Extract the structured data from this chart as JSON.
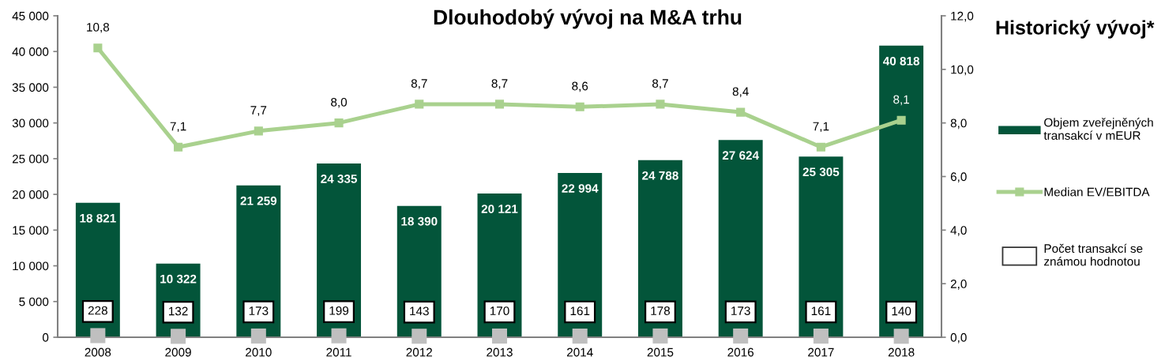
{
  "chart_data": {
    "type": "bar",
    "title": "Dlouhodobý vývoj na M&A trhu",
    "categories": [
      "2008",
      "2009",
      "2010",
      "2011",
      "2012",
      "2013",
      "2014",
      "2015",
      "2016",
      "2017",
      "2018"
    ],
    "series": [
      {
        "name": "Objem zveřejněných\ntransakcí v mEUR",
        "color": "#03553a",
        "values": [
          18821,
          10322,
          21259,
          24335,
          18390,
          20121,
          22994,
          24788,
          27624,
          25305,
          40818
        ],
        "value_labels": [
          "18 821",
          "10 322",
          "21 259",
          "24 335",
          "18 390",
          "20 121",
          "22 994",
          "24 788",
          "27 624",
          "25 305",
          "40 818"
        ]
      },
      {
        "name": "Median EV/EBITDA",
        "type": "line",
        "axis": "y2",
        "marker": "square",
        "color": "#a9d18e",
        "values": [
          10.8,
          7.1,
          7.7,
          8.0,
          8.7,
          8.7,
          8.6,
          8.7,
          8.4,
          7.1,
          8.1
        ],
        "value_labels": [
          "10,8",
          "7,1",
          "7,7",
          "8,0",
          "8,7",
          "8,7",
          "8,6",
          "8,7",
          "8,4",
          "7,1",
          "8,1"
        ]
      },
      {
        "name": "Počet transakcí se\nznámou hodnotou",
        "type": "scatter",
        "marker": "square",
        "color": "#bfbfbf",
        "values": [
          228,
          132,
          173,
          199,
          143,
          170,
          161,
          178,
          173,
          161,
          140
        ],
        "value_labels": [
          "228",
          "132",
          "173",
          "199",
          "143",
          "170",
          "161",
          "178",
          "173",
          "161",
          "140"
        ]
      }
    ],
    "ylim": [
      0,
      45000
    ],
    "yticks": [
      0,
      {
        "value": 5000,
        "label": "5 000"
      },
      {
        "value": 10000,
        "label": "10 000"
      },
      {
        "value": 15000,
        "label": "15 000"
      },
      {
        "value": 20000,
        "label": "20 000"
      },
      {
        "value": 25000,
        "label": "25 000"
      },
      {
        "value": 30000,
        "label": "30 000"
      },
      {
        "value": 35000,
        "label": "35 000"
      },
      {
        "value": 40000,
        "label": "40 000"
      },
      {
        "value": 45000,
        "label": "45 000"
      }
    ],
    "y2lim": [
      0,
      12
    ],
    "y2ticks": [
      {
        "value": 0,
        "label": "0,0"
      },
      {
        "value": 2,
        "label": "2,0"
      },
      {
        "value": 4,
        "label": "4,0"
      },
      {
        "value": 6,
        "label": "6,0"
      },
      {
        "value": 8,
        "label": "8,0"
      },
      {
        "value": 10,
        "label": "10,0"
      },
      {
        "value": 12,
        "label": "12,0"
      }
    ],
    "legend": "right",
    "annotations": [
      "Historický vývoj*"
    ]
  }
}
